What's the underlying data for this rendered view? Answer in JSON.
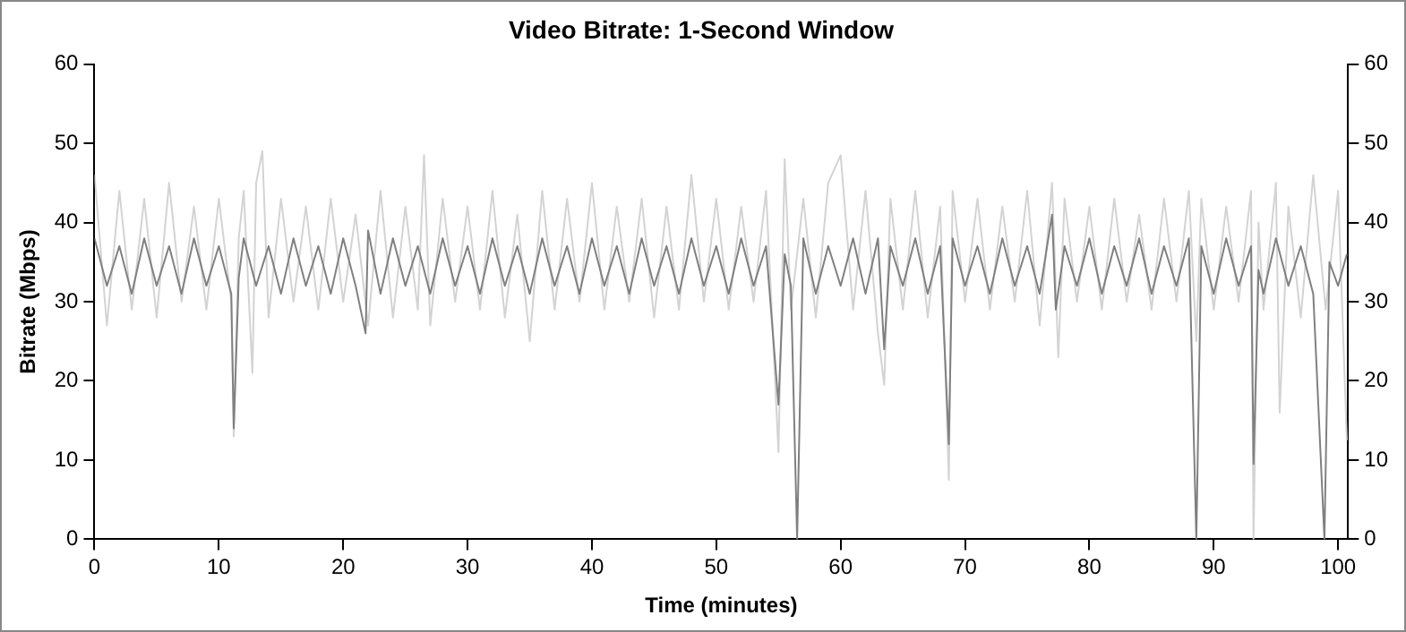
{
  "chart_data": {
    "type": "line",
    "title": "Video Bitrate: 1-Second Window",
    "xlabel": "Time (minutes)",
    "ylabel": "Bitrate (Mbps)",
    "xlim": [
      0,
      100.8
    ],
    "xticks": [
      0,
      10,
      20,
      30,
      40,
      50,
      60,
      70,
      80,
      90,
      100
    ],
    "ylim": [
      0,
      60
    ],
    "yticks": [
      0,
      10,
      20,
      30,
      40,
      50,
      60
    ],
    "y2lim": [
      0,
      60
    ],
    "y2ticks": [
      0,
      10,
      20,
      30,
      40,
      50,
      60
    ],
    "grid": false,
    "legend": false,
    "marker": "none",
    "line_style": "solid",
    "series": [
      {
        "color": "#d3d3d3",
        "x": [
          0,
          1,
          2,
          3,
          4,
          5,
          6,
          7,
          8,
          9,
          10,
          11,
          11.2,
          11.6,
          12,
          12.7,
          13,
          13.5,
          14,
          15,
          16,
          17,
          18,
          19,
          20,
          21,
          22,
          23,
          24,
          25,
          26,
          26.5,
          27,
          28,
          29,
          30,
          31,
          32,
          33,
          34,
          35,
          36,
          37,
          38,
          39,
          40,
          41,
          42,
          43,
          44,
          45,
          46,
          47,
          48,
          49,
          50,
          51,
          52,
          53,
          54,
          55,
          55.5,
          56,
          57,
          58,
          59,
          60,
          61,
          62,
          63,
          63.5,
          64,
          65,
          66,
          67,
          68,
          68.7,
          69,
          70,
          71,
          72,
          73,
          74,
          75,
          76,
          77,
          77.5,
          78,
          79,
          80,
          81,
          82,
          83,
          84,
          85,
          86,
          87,
          88,
          88.6,
          89,
          90,
          91,
          92,
          93,
          93.2,
          93.6,
          94,
          95,
          95.3,
          96,
          97,
          98,
          99,
          100,
          100.7
        ],
        "values": [
          46,
          27,
          44,
          29,
          43,
          28,
          45,
          30,
          42,
          29,
          43,
          30,
          13,
          38,
          44,
          21,
          45,
          49,
          28,
          43,
          30,
          42,
          29,
          43,
          30,
          41,
          27,
          44,
          28,
          42,
          29,
          48.5,
          27,
          43,
          30,
          42,
          29,
          44,
          28,
          41,
          25,
          44,
          29,
          43,
          30,
          45,
          29,
          42,
          30,
          43,
          28,
          42,
          29,
          46,
          30,
          43,
          29,
          42,
          30,
          44,
          11,
          48,
          29,
          43,
          28,
          45,
          48.5,
          29,
          44,
          26,
          19.5,
          43,
          29,
          44,
          28,
          42,
          7.5,
          44,
          30,
          43,
          29,
          42,
          30,
          44,
          27,
          45,
          23,
          43,
          30,
          42,
          29,
          43,
          30,
          41,
          29,
          43,
          30,
          44,
          25,
          43,
          29,
          42,
          30,
          44,
          0,
          40,
          29,
          45,
          16,
          42,
          28,
          46,
          29,
          44,
          12.5
        ]
      },
      {
        "color": "#808080",
        "x": [
          0,
          1,
          2,
          3,
          4,
          5,
          6,
          7,
          8,
          9,
          10,
          11,
          11.2,
          11.6,
          12,
          13,
          14,
          15,
          16,
          17,
          18,
          19,
          20,
          21,
          21.8,
          22,
          23,
          24,
          25,
          26,
          27,
          28,
          29,
          30,
          31,
          32,
          33,
          34,
          35,
          36,
          37,
          38,
          39,
          40,
          41,
          42,
          43,
          44,
          45,
          46,
          47,
          48,
          49,
          50,
          51,
          52,
          53,
          54,
          55,
          55.5,
          56,
          56.5,
          57,
          58,
          59,
          60,
          61,
          62,
          63,
          63.5,
          64,
          65,
          66,
          67,
          68,
          68.7,
          69,
          70,
          71,
          72,
          73,
          74,
          75,
          76,
          77,
          77.3,
          78,
          79,
          80,
          81,
          82,
          83,
          84,
          85,
          86,
          87,
          88,
          88.6,
          89,
          90,
          91,
          92,
          93,
          93.2,
          93.6,
          94,
          95,
          96,
          97,
          98,
          98.9,
          99.3,
          100,
          100.7
        ],
        "values": [
          38,
          32,
          37,
          31,
          38,
          32,
          37,
          31,
          38,
          32,
          37,
          31,
          14,
          33,
          38,
          32,
          37,
          31,
          38,
          32,
          37,
          31,
          38,
          32,
          26,
          39,
          31,
          38,
          32,
          37,
          31,
          38,
          32,
          37,
          31,
          38,
          32,
          37,
          31,
          38,
          32,
          37,
          31,
          38,
          32,
          37,
          31,
          38,
          32,
          37,
          31,
          38,
          32,
          37,
          31,
          38,
          32,
          37,
          17,
          36,
          32,
          0,
          38,
          31,
          37,
          32,
          38,
          31,
          38,
          24,
          37,
          32,
          38,
          31,
          37,
          12,
          38,
          32,
          37,
          31,
          38,
          32,
          37,
          31,
          41,
          29,
          37,
          32,
          38,
          31,
          37,
          32,
          38,
          31,
          37,
          32,
          38,
          0,
          37,
          31,
          38,
          32,
          37,
          9.5,
          34,
          31,
          38,
          32,
          37,
          31,
          0,
          35,
          32,
          36
        ]
      }
    ]
  }
}
